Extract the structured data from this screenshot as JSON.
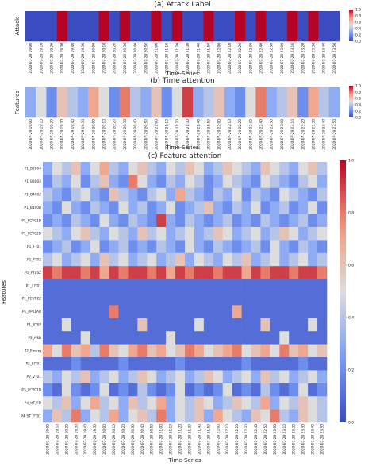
{
  "chart_data": [
    {
      "type": "heatmap",
      "title": "(a) Attack Label",
      "ylabel": "Attack",
      "xlabel": "Time-Series",
      "categories": [
        "2020-07-29 19:00",
        "2020-07-29 19:10",
        "2020-07-29 19:20",
        "2020-07-29 19:30",
        "2020-07-29 19:40",
        "2020-07-29 19:50",
        "2020-07-29 20:00",
        "2020-07-29 20:10",
        "2020-07-29 20:20",
        "2020-07-29 20:30",
        "2020-07-29 20:40",
        "2020-07-29 20:50",
        "2020-07-29 21:00",
        "2020-07-29 21:10",
        "2020-07-29 21:20",
        "2020-07-29 21:30",
        "2020-07-29 21:40",
        "2020-07-29 21:50",
        "2020-07-29 22:00",
        "2020-07-29 22:10",
        "2020-07-29 22:20",
        "2020-07-29 22:30",
        "2020-07-29 22:40",
        "2020-07-29 22:50",
        "2020-07-29 23:00",
        "2020-07-29 23:10",
        "2020-07-29 23:20",
        "2020-07-29 23:30",
        "2020-07-29 23:40",
        "2020-07-29 23:50"
      ],
      "z": [
        [
          0,
          0,
          0,
          1,
          0,
          0,
          0,
          1,
          0,
          1,
          0,
          0,
          1,
          0,
          1,
          0,
          0,
          1,
          0,
          0,
          1,
          0,
          1,
          0,
          0,
          1,
          0,
          1,
          0,
          0
        ]
      ],
      "clim": [
        0,
        1
      ],
      "cticks": [
        {
          "value": 0,
          "label": "0.0"
        },
        0.2,
        0.4,
        0.6,
        0.8,
        {
          "value": 1,
          "label": "1.0"
        }
      ]
    },
    {
      "type": "heatmap",
      "title": "(b) Time attention",
      "ylabel": "Features",
      "xlabel": "Time-Series",
      "categories": [
        "2020-07-29 19:00",
        "2020-07-29 19:10",
        "2020-07-29 19:20",
        "2020-07-29 19:30",
        "2020-07-29 19:40",
        "2020-07-29 19:50",
        "2020-07-29 20:00",
        "2020-07-29 20:10",
        "2020-07-29 20:20",
        "2020-07-29 20:30",
        "2020-07-29 20:40",
        "2020-07-29 20:50",
        "2020-07-29 21:00",
        "2020-07-29 21:10",
        "2020-07-29 21:20",
        "2020-07-29 21:30",
        "2020-07-29 21:40",
        "2020-07-29 21:50",
        "2020-07-29 22:00",
        "2020-07-29 22:10",
        "2020-07-29 22:20",
        "2020-07-29 22:30",
        "2020-07-29 22:40",
        "2020-07-29 22:50",
        "2020-07-29 23:00",
        "2020-07-29 23:10",
        "2020-07-29 23:20",
        "2020-07-29 23:30",
        "2020-07-29 23:40",
        "2020-07-29 23:50"
      ],
      "z": [
        [
          0.3,
          0.5,
          0.2,
          0.6,
          0.4,
          0.3,
          0.7,
          0.5,
          0.2,
          0.8,
          0.4,
          0.3,
          0.6,
          0.2,
          0.5,
          0.9,
          0.3,
          0.4,
          0.6,
          0.3,
          0.2,
          0.5,
          0.8,
          0.3,
          0.4,
          0.6,
          0.2,
          0.7,
          0.4,
          0.3
        ]
      ],
      "clim": [
        0,
        1
      ],
      "cticks": [
        {
          "value": 0,
          "label": "0.0"
        },
        0.2,
        0.4,
        0.6,
        0.8,
        {
          "value": 1,
          "label": "1.0"
        }
      ]
    },
    {
      "type": "heatmap",
      "title": "(c) Feature attention",
      "ylabel": "Features",
      "xlabel": "Time-Series",
      "categories": [
        "2020-07-29 19:00",
        "2020-07-29 19:10",
        "2020-07-29 19:20",
        "2020-07-29 19:30",
        "2020-07-29 19:40",
        "2020-07-29 19:50",
        "2020-07-29 20:00",
        "2020-07-29 20:10",
        "2020-07-29 20:20",
        "2020-07-29 20:30",
        "2020-07-29 20:40",
        "2020-07-29 20:50",
        "2020-07-29 21:00",
        "2020-07-29 21:10",
        "2020-07-29 21:20",
        "2020-07-29 21:30",
        "2020-07-29 21:40",
        "2020-07-29 21:50",
        "2020-07-29 22:00",
        "2020-07-29 22:10",
        "2020-07-29 22:20",
        "2020-07-29 22:30",
        "2020-07-29 22:40",
        "2020-07-29 22:50",
        "2020-07-29 23:00",
        "2020-07-29 23:10",
        "2020-07-29 23:20",
        "2020-07-29 23:30",
        "2020-07-29 23:40",
        "2020-07-29 23:50"
      ],
      "rows": [
        "P1_B2004",
        "P1_B3004",
        "P1_B4002",
        "P1_B400B",
        "P1_FCV01D",
        "P1_FCV02D",
        "P1_FT01",
        "P1_FT02",
        "P1_FT03Z",
        "P1_LIT01",
        "P1_PCV02Z",
        "P1_PP01AR",
        "P1_STSP",
        "P2_ASD",
        "P2_Emerg",
        "P2_SIT01",
        "P2_VT01",
        "P3_LCV01D",
        "P4_HT_FD",
        "P4_ST_PT01"
      ],
      "z": [
        [
          0.3,
          0.5,
          0.4,
          0.6,
          0.3,
          0.5,
          0.7,
          0.4,
          0.3,
          0.5,
          0.6,
          0.4,
          0.3,
          0.5,
          0.4,
          0.6,
          0.5,
          0.3,
          0.4,
          0.6,
          0.5,
          0.4,
          0.3,
          0.6,
          0.5,
          0.4,
          0.3,
          0.5,
          0.6,
          0.4
        ],
        [
          0.2,
          0.4,
          0.3,
          0.5,
          0.2,
          0.4,
          0.6,
          0.3,
          0.2,
          0.8,
          0.5,
          0.3,
          0.2,
          0.4,
          0.3,
          0.5,
          0.4,
          0.2,
          0.3,
          0.5,
          0.4,
          0.3,
          0.2,
          0.5,
          0.4,
          0.3,
          0.2,
          0.4,
          0.5,
          0.3
        ],
        [
          0.4,
          0.3,
          0.2,
          0.4,
          0.5,
          0.3,
          0.2,
          0.6,
          0.4,
          0.3,
          0.2,
          0.4,
          0.5,
          0.3,
          0.7,
          0.4,
          0.3,
          0.2,
          0.4,
          0.3,
          0.5,
          0.2,
          0.4,
          0.3,
          0.2,
          0.5,
          0.4,
          0.3,
          0.2,
          0.4
        ],
        [
          0.3,
          0.2,
          0.5,
          0.3,
          0.2,
          0.4,
          0.3,
          0.2,
          0.5,
          0.3,
          0.4,
          0.2,
          0.3,
          0.5,
          0.2,
          0.3,
          0.4,
          0.6,
          0.3,
          0.2,
          0.4,
          0.3,
          0.5,
          0.2,
          0.3,
          0.4,
          0.2,
          0.3,
          0.5,
          0.2
        ],
        [
          0.2,
          0.3,
          0.2,
          0.4,
          0.3,
          0.2,
          0.5,
          0.3,
          0.2,
          0.4,
          0.3,
          0.2,
          0.9,
          0.3,
          0.2,
          0.4,
          0.3,
          0.2,
          0.3,
          0.4,
          0.2,
          0.3,
          0.2,
          0.4,
          0.3,
          0.2,
          0.3,
          0.4,
          0.2,
          0.3
        ],
        [
          0.5,
          0.4,
          0.3,
          0.5,
          0.6,
          0.4,
          0.3,
          0.5,
          0.4,
          0.3,
          0.6,
          0.4,
          0.5,
          0.3,
          0.4,
          0.5,
          0.3,
          0.4,
          0.6,
          0.5,
          0.3,
          0.4,
          0.5,
          0.3,
          0.4,
          0.6,
          0.5,
          0.3,
          0.4,
          0.5
        ],
        [
          0.2,
          0.3,
          0.4,
          0.2,
          0.3,
          0.5,
          0.2,
          0.3,
          0.4,
          0.2,
          0.3,
          0.2,
          0.4,
          0.3,
          0.2,
          0.5,
          0.3,
          0.2,
          0.4,
          0.3,
          0.2,
          0.3,
          0.4,
          0.2,
          0.5,
          0.3,
          0.2,
          0.4,
          0.3,
          0.2
        ],
        [
          0.4,
          0.5,
          0.3,
          0.4,
          0.5,
          0.3,
          0.6,
          0.4,
          0.5,
          0.3,
          0.4,
          0.5,
          0.3,
          0.4,
          0.6,
          0.3,
          0.5,
          0.4,
          0.3,
          0.5,
          0.4,
          0.6,
          0.3,
          0.4,
          0.5,
          0.3,
          0.4,
          0.5,
          0.3,
          0.4
        ],
        [
          0.9,
          0.8,
          0.9,
          0.9,
          0.8,
          0.9,
          0.7,
          0.9,
          0.8,
          0.9,
          0.9,
          0.8,
          0.9,
          0.7,
          0.9,
          0.8,
          0.9,
          0.9,
          0.8,
          0.9,
          0.9,
          0.7,
          0.9,
          0.8,
          0.9,
          0.9,
          0.8,
          0.9,
          0.9,
          0.8
        ],
        [
          0.1,
          0.1,
          0.1,
          0.1,
          0.1,
          0.1,
          0.1,
          0.1,
          0.1,
          0.1,
          0.1,
          0.1,
          0.1,
          0.1,
          0.1,
          0.1,
          0.1,
          0.1,
          0.1,
          0.1,
          0.1,
          0.1,
          0.1,
          0.1,
          0.1,
          0.1,
          0.1,
          0.1,
          0.1,
          0.1
        ],
        [
          0.1,
          0.1,
          0.1,
          0.1,
          0.1,
          0.1,
          0.1,
          0.1,
          0.1,
          0.1,
          0.1,
          0.1,
          0.1,
          0.1,
          0.1,
          0.1,
          0.1,
          0.1,
          0.1,
          0.1,
          0.1,
          0.1,
          0.1,
          0.1,
          0.1,
          0.1,
          0.1,
          0.1,
          0.1,
          0.1
        ],
        [
          0.1,
          0.1,
          0.1,
          0.1,
          0.1,
          0.1,
          0.1,
          0.8,
          0.1,
          0.1,
          0.1,
          0.1,
          0.1,
          0.1,
          0.1,
          0.1,
          0.1,
          0.1,
          0.1,
          0.1,
          0.7,
          0.1,
          0.1,
          0.1,
          0.1,
          0.1,
          0.1,
          0.1,
          0.1,
          0.1
        ],
        [
          0.1,
          0.1,
          0.5,
          0.1,
          0.1,
          0.1,
          0.1,
          0.1,
          0.1,
          0.1,
          0.6,
          0.1,
          0.1,
          0.1,
          0.1,
          0.1,
          0.5,
          0.1,
          0.1,
          0.1,
          0.1,
          0.1,
          0.1,
          0.6,
          0.1,
          0.1,
          0.1,
          0.1,
          0.5,
          0.1
        ],
        [
          0.1,
          0.1,
          0.1,
          0.1,
          0.5,
          0.1,
          0.1,
          0.1,
          0.1,
          0.1,
          0.1,
          0.1,
          0.1,
          0.5,
          0.1,
          0.1,
          0.1,
          0.1,
          0.1,
          0.1,
          0.1,
          0.1,
          0.1,
          0.1,
          0.1,
          0.5,
          0.1,
          0.1,
          0.1,
          0.1
        ],
        [
          0.7,
          0.5,
          0.8,
          0.6,
          0.7,
          0.4,
          0.8,
          0.6,
          0.5,
          0.7,
          0.8,
          0.6,
          0.7,
          0.5,
          0.6,
          0.8,
          0.7,
          0.5,
          0.6,
          0.7,
          0.8,
          0.5,
          0.6,
          0.7,
          0.5,
          0.8,
          0.6,
          0.7,
          0.5,
          0.6
        ],
        [
          0.1,
          0.1,
          0.1,
          0.2,
          0.1,
          0.1,
          0.1,
          0.1,
          0.2,
          0.1,
          0.1,
          0.1,
          0.1,
          0.1,
          0.2,
          0.1,
          0.1,
          0.1,
          0.1,
          0.1,
          0.1,
          0.2,
          0.1,
          0.1,
          0.1,
          0.1,
          0.1,
          0.2,
          0.1,
          0.1
        ],
        [
          0.4,
          0.3,
          0.5,
          0.4,
          0.6,
          0.3,
          0.4,
          0.5,
          0.3,
          0.4,
          0.6,
          0.5,
          0.3,
          0.4,
          0.5,
          0.3,
          0.4,
          0.6,
          0.5,
          0.3,
          0.4,
          0.5,
          0.3,
          0.6,
          0.4,
          0.5,
          0.3,
          0.4,
          0.5,
          0.3
        ],
        [
          0.2,
          0.1,
          0.5,
          0.2,
          0.1,
          0.2,
          0.5,
          0.1,
          0.2,
          0.1,
          0.4,
          0.2,
          0.1,
          0.2,
          0.5,
          0.1,
          0.2,
          0.1,
          0.2,
          0.5,
          0.1,
          0.2,
          0.1,
          0.4,
          0.2,
          0.1,
          0.2,
          0.5,
          0.1,
          0.2
        ],
        [
          0.5,
          0.4,
          0.6,
          0.3,
          0.5,
          0.7,
          0.4,
          0.5,
          0.3,
          0.6,
          0.4,
          0.5,
          0.7,
          0.3,
          0.5,
          0.4,
          0.6,
          0.5,
          0.3,
          0.4,
          0.6,
          0.5,
          0.4,
          0.7,
          0.3,
          0.5,
          0.4,
          0.6,
          0.5,
          0.4
        ],
        [
          0.3,
          0.6,
          0.4,
          0.8,
          0.3,
          0.5,
          0.4,
          0.7,
          0.3,
          0.5,
          0.6,
          0.4,
          0.8,
          0.3,
          0.5,
          0.4,
          0.6,
          0.3,
          0.7,
          0.5,
          0.4,
          0.3,
          0.6,
          0.5,
          0.8,
          0.4,
          0.3,
          0.6,
          0.5,
          0.4
        ]
      ],
      "clim": [
        0,
        1
      ],
      "cticks": [
        {
          "value": 0,
          "label": "0.0"
        },
        0.2,
        0.4,
        0.6,
        0.8,
        {
          "value": 1,
          "label": "1.0"
        }
      ]
    }
  ]
}
